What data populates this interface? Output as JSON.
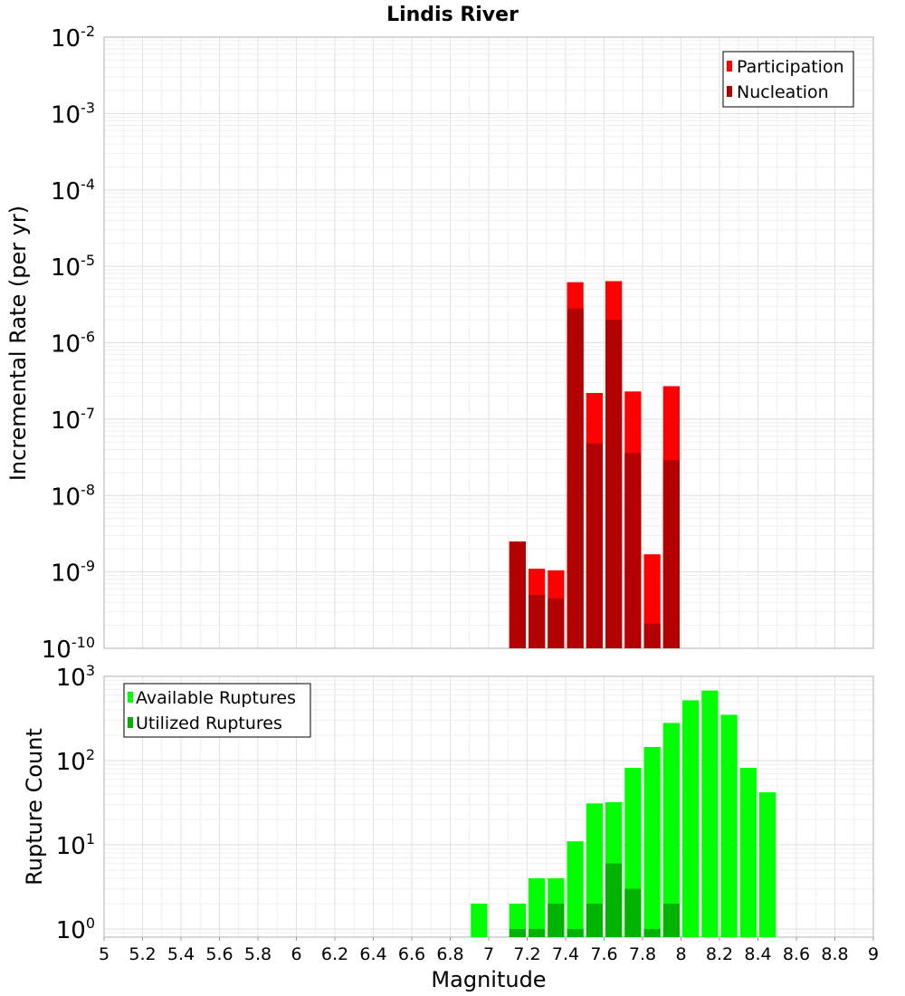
{
  "chart_data": [
    {
      "type": "bar",
      "title": "Lindis River",
      "ylabel": "Incremental Rate (per yr)",
      "xlabel": "",
      "yscale": "log",
      "ylim": [
        1e-10,
        0.01
      ],
      "xlim": [
        5,
        9
      ],
      "y_ticks": [
        {
          "base": "10",
          "exp": "-10"
        },
        {
          "base": "10",
          "exp": "-9"
        },
        {
          "base": "10",
          "exp": "-8"
        },
        {
          "base": "10",
          "exp": "-7"
        },
        {
          "base": "10",
          "exp": "-6"
        },
        {
          "base": "10",
          "exp": "-5"
        },
        {
          "base": "10",
          "exp": "-4"
        },
        {
          "base": "10",
          "exp": "-3"
        },
        {
          "base": "10",
          "exp": "-2"
        }
      ],
      "legend_position": "top-right",
      "grid": true,
      "series": [
        {
          "name": "Participation",
          "color": "#ff0000",
          "x": [
            7.15,
            7.25,
            7.35,
            7.45,
            7.55,
            7.65,
            7.75,
            7.85,
            7.95
          ],
          "values": [
            2.5e-09,
            1.1e-09,
            1.05e-09,
            6.2e-06,
            2.2e-07,
            6.4e-06,
            2.3e-07,
            1.7e-09,
            2.7e-07
          ]
        },
        {
          "name": "Nucleation",
          "color": "#b30000",
          "x": [
            7.15,
            7.25,
            7.35,
            7.45,
            7.55,
            7.65,
            7.75,
            7.85,
            7.95
          ],
          "values": [
            2.5e-09,
            5e-10,
            4.5e-10,
            2.8e-06,
            4.8e-08,
            2e-06,
            3.6e-08,
            2.1e-10,
            2.9e-08
          ]
        }
      ]
    },
    {
      "type": "bar",
      "title": "",
      "ylabel": "Rupture Count",
      "xlabel": "Magnitude",
      "yscale": "log",
      "ylim": [
        0.8,
        1000
      ],
      "xlim": [
        5,
        9
      ],
      "x_ticks": [
        "5",
        "5.2",
        "5.4",
        "5.6",
        "5.8",
        "6",
        "6.2",
        "6.4",
        "6.6",
        "6.8",
        "7",
        "7.2",
        "7.4",
        "7.6",
        "7.8",
        "8",
        "8.2",
        "8.4",
        "8.6",
        "8.8",
        "9"
      ],
      "y_ticks": [
        {
          "base": "10",
          "exp": "0"
        },
        {
          "base": "10",
          "exp": "1"
        },
        {
          "base": "10",
          "exp": "2"
        },
        {
          "base": "10",
          "exp": "3"
        }
      ],
      "legend_position": "top-left",
      "grid": true,
      "series": [
        {
          "name": "Available Ruptures",
          "color": "#00ff00",
          "x": [
            6.95,
            7.15,
            7.25,
            7.35,
            7.45,
            7.55,
            7.65,
            7.75,
            7.85,
            7.95,
            8.05,
            8.15,
            8.25,
            8.35,
            8.45
          ],
          "values": [
            2,
            2,
            4,
            4,
            11,
            31,
            32,
            82,
            145,
            280,
            520,
            680,
            350,
            82,
            42
          ]
        },
        {
          "name": "Utilized Ruptures",
          "color": "#00b300",
          "x": [
            7.15,
            7.25,
            7.35,
            7.45,
            7.55,
            7.65,
            7.75,
            7.85,
            7.95
          ],
          "values": [
            1,
            1,
            2,
            1,
            2,
            6,
            3,
            1,
            2
          ]
        }
      ]
    }
  ]
}
